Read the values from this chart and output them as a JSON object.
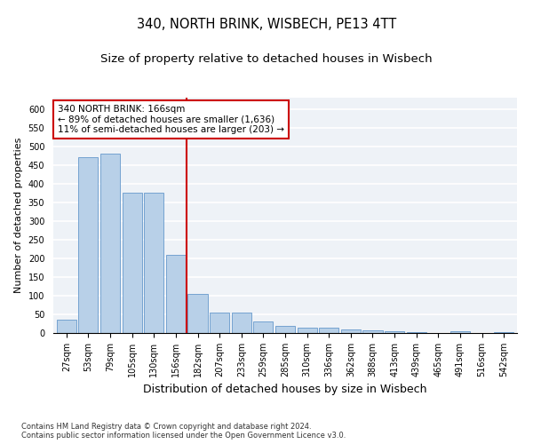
{
  "title": "340, NORTH BRINK, WISBECH, PE13 4TT",
  "subtitle": "Size of property relative to detached houses in Wisbech",
  "xlabel": "Distribution of detached houses by size in Wisbech",
  "ylabel": "Number of detached properties",
  "categories": [
    "27sqm",
    "53sqm",
    "79sqm",
    "105sqm",
    "130sqm",
    "156sqm",
    "182sqm",
    "207sqm",
    "233sqm",
    "259sqm",
    "285sqm",
    "310sqm",
    "336sqm",
    "362sqm",
    "388sqm",
    "413sqm",
    "439sqm",
    "465sqm",
    "491sqm",
    "516sqm",
    "542sqm"
  ],
  "values": [
    35,
    470,
    480,
    375,
    375,
    210,
    105,
    55,
    55,
    30,
    20,
    15,
    15,
    10,
    8,
    5,
    3,
    1,
    5,
    1,
    3
  ],
  "bar_color": "#b8d0e8",
  "bar_edge_color": "#6699cc",
  "vline_color": "#cc0000",
  "annotation_text": "340 NORTH BRINK: 166sqm\n← 89% of detached houses are smaller (1,636)\n11% of semi-detached houses are larger (203) →",
  "annotation_box_color": "#ffffff",
  "annotation_box_edge_color": "#cc0000",
  "ylim": [
    0,
    630
  ],
  "yticks": [
    0,
    50,
    100,
    150,
    200,
    250,
    300,
    350,
    400,
    450,
    500,
    550,
    600
  ],
  "background_color": "#eef2f7",
  "grid_color": "#ffffff",
  "footer_text": "Contains HM Land Registry data © Crown copyright and database right 2024.\nContains public sector information licensed under the Open Government Licence v3.0.",
  "title_fontsize": 10.5,
  "subtitle_fontsize": 9.5,
  "xlabel_fontsize": 9,
  "ylabel_fontsize": 8,
  "tick_fontsize": 7,
  "footer_fontsize": 6
}
